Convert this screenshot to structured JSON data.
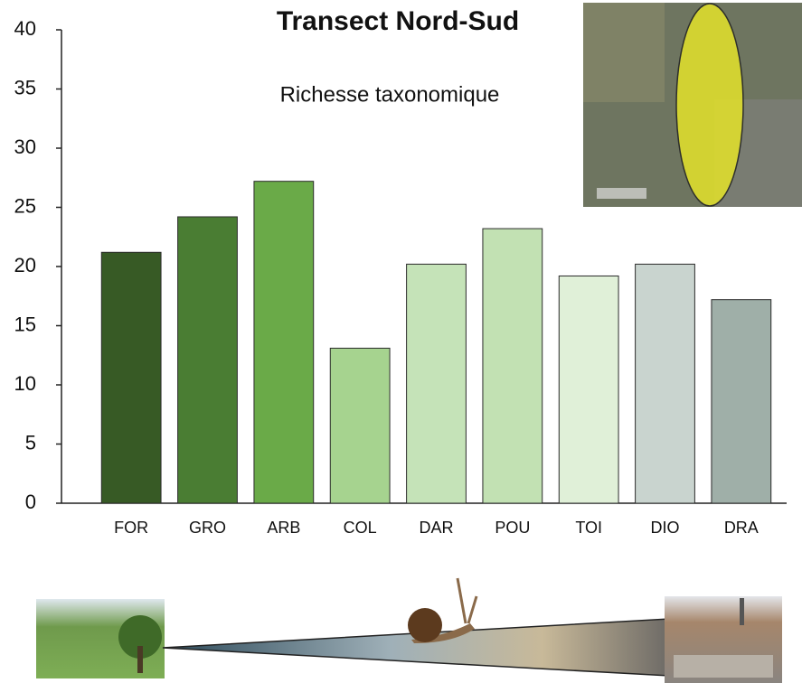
{
  "chart_data": {
    "type": "bar",
    "title": "Transect Nord-Sud",
    "subtitle": "Richesse taxonomique",
    "categories": [
      "FOR",
      "GRO",
      "ARB",
      "COL",
      "DAR",
      "POU",
      "TOI",
      "DIO",
      "DRA"
    ],
    "values": [
      21.2,
      24.2,
      27.2,
      13.1,
      20.2,
      23.2,
      19.2,
      20.2,
      17.2
    ],
    "colors": [
      "#375a25",
      "#4a7d33",
      "#6aaa48",
      "#a6d38f",
      "#c5e3b8",
      "#c2e1b3",
      "#e0f0d8",
      "#c9d4cf",
      "#9fafa8"
    ],
    "ylim": [
      0,
      40
    ],
    "yticks": [
      0,
      5,
      10,
      15,
      20,
      25,
      30,
      35,
      40
    ]
  }
}
